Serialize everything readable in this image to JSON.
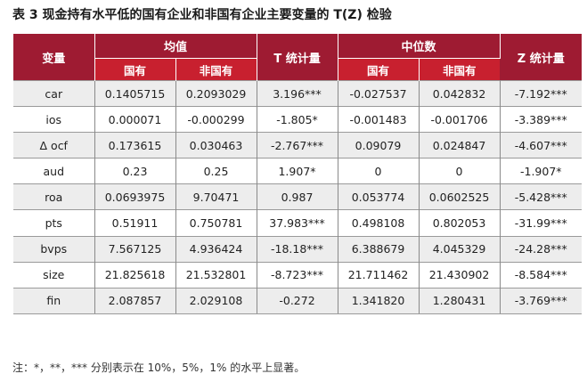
{
  "caption": "表 3 现金持有水平低的国有企业和非国有企业主要变量的 T(Z) 检验",
  "headers": {
    "variable": "变量",
    "mean_group": "均值",
    "t_stat": "T 统计量",
    "median_group": "中位数",
    "z_stat": "Z 统计量",
    "soe": "国有",
    "non_soe": "非国有"
  },
  "rows": [
    {
      "var": "car",
      "mean_soe": "0.1405715",
      "mean_non": "0.2093029",
      "t": "3.196***",
      "med_soe": "-0.027537",
      "med_non": "0.042832",
      "z": "-7.192***"
    },
    {
      "var": "ios",
      "mean_soe": "0.000071",
      "mean_non": "-0.000299",
      "t": "-1.805*",
      "med_soe": "-0.001483",
      "med_non": "-0.001706",
      "z": "-3.389***"
    },
    {
      "var": "Δ ocf",
      "mean_soe": "0.173615",
      "mean_non": "0.030463",
      "t": "-2.767***",
      "med_soe": "0.09079",
      "med_non": "0.024847",
      "z": "-4.607***"
    },
    {
      "var": "aud",
      "mean_soe": "0.23",
      "mean_non": "0.25",
      "t": "1.907*",
      "med_soe": "0",
      "med_non": "0",
      "z": "-1.907*"
    },
    {
      "var": "roa",
      "mean_soe": "0.0693975",
      "mean_non": "9.70471",
      "t": "0.987",
      "med_soe": "0.053774",
      "med_non": "0.0602525",
      "z": "-5.428***"
    },
    {
      "var": "pts",
      "mean_soe": "0.51911",
      "mean_non": "0.750781",
      "t": "37.983***",
      "med_soe": "0.498108",
      "med_non": "0.802053",
      "z": "-31.99***"
    },
    {
      "var": "bvps",
      "mean_soe": "7.567125",
      "mean_non": "4.936424",
      "t": "-18.18***",
      "med_soe": "6.388679",
      "med_non": "4.045329",
      "z": "-24.28***"
    },
    {
      "var": "size",
      "mean_soe": "21.825618",
      "mean_non": "21.532801",
      "t": "-8.723***",
      "med_soe": "21.711462",
      "med_non": "21.430902",
      "z": "-8.584***"
    },
    {
      "var": "fin",
      "mean_soe": "2.087857",
      "mean_non": "2.029108",
      "t": "-0.272",
      "med_soe": "1.341820",
      "med_non": "1.280431",
      "z": "-3.769***"
    }
  ],
  "note": "注：*，**，*** 分别表示在 10%，5%，1% 的水平上显著。"
}
